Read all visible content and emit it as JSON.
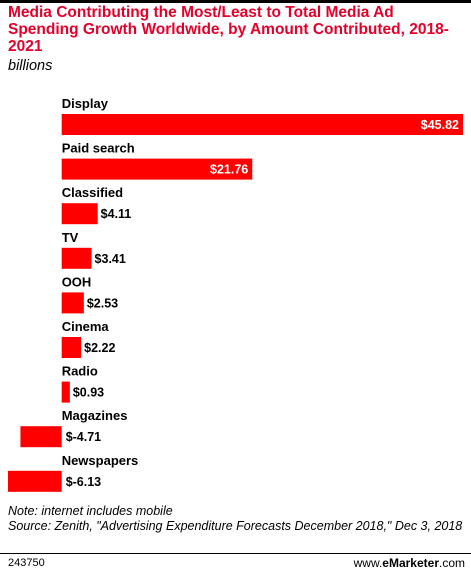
{
  "header": {
    "title": "Media Contributing the Most/Least to Total Media Ad Spending Growth Worldwide, by Amount Contributed, 2018-2021",
    "subtitle": "billions"
  },
  "chart_data": {
    "type": "bar",
    "orientation": "horizontal",
    "categories": [
      "Display",
      "Paid search",
      "Classified",
      "TV",
      "OOH",
      "Cinema",
      "Radio",
      "Magazines",
      "Newspapers"
    ],
    "values": [
      45.82,
      21.76,
      4.11,
      3.41,
      2.53,
      2.22,
      0.93,
      -4.71,
      -6.13
    ],
    "value_labels": [
      "$45.82",
      "$21.76",
      "$4.11",
      "$3.41",
      "$2.53",
      "$2.22",
      "$0.93",
      "$-4.71",
      "$-6.13"
    ],
    "title": "Media Contributing the Most/Least to Total Media Ad Spending Growth Worldwide, by Amount Contributed, 2018-2021",
    "subtitle": "billions",
    "xlim": [
      -6.13,
      45.82
    ],
    "bar_color": "#ff0000",
    "grid": false,
    "legend": "none"
  },
  "footer": {
    "note": "Note: internet includes mobile",
    "source": "Source: Zenith, \"Advertising Expenditure Forecasts December 2018,\" Dec 3, 2018",
    "chart_id": "243750",
    "brand_prefix": "www.",
    "brand_name": "eMarketer",
    "brand_suffix": ".com"
  },
  "colors": {
    "accent": "#e4002b",
    "bar": "#ff0000",
    "text": "#000000"
  }
}
